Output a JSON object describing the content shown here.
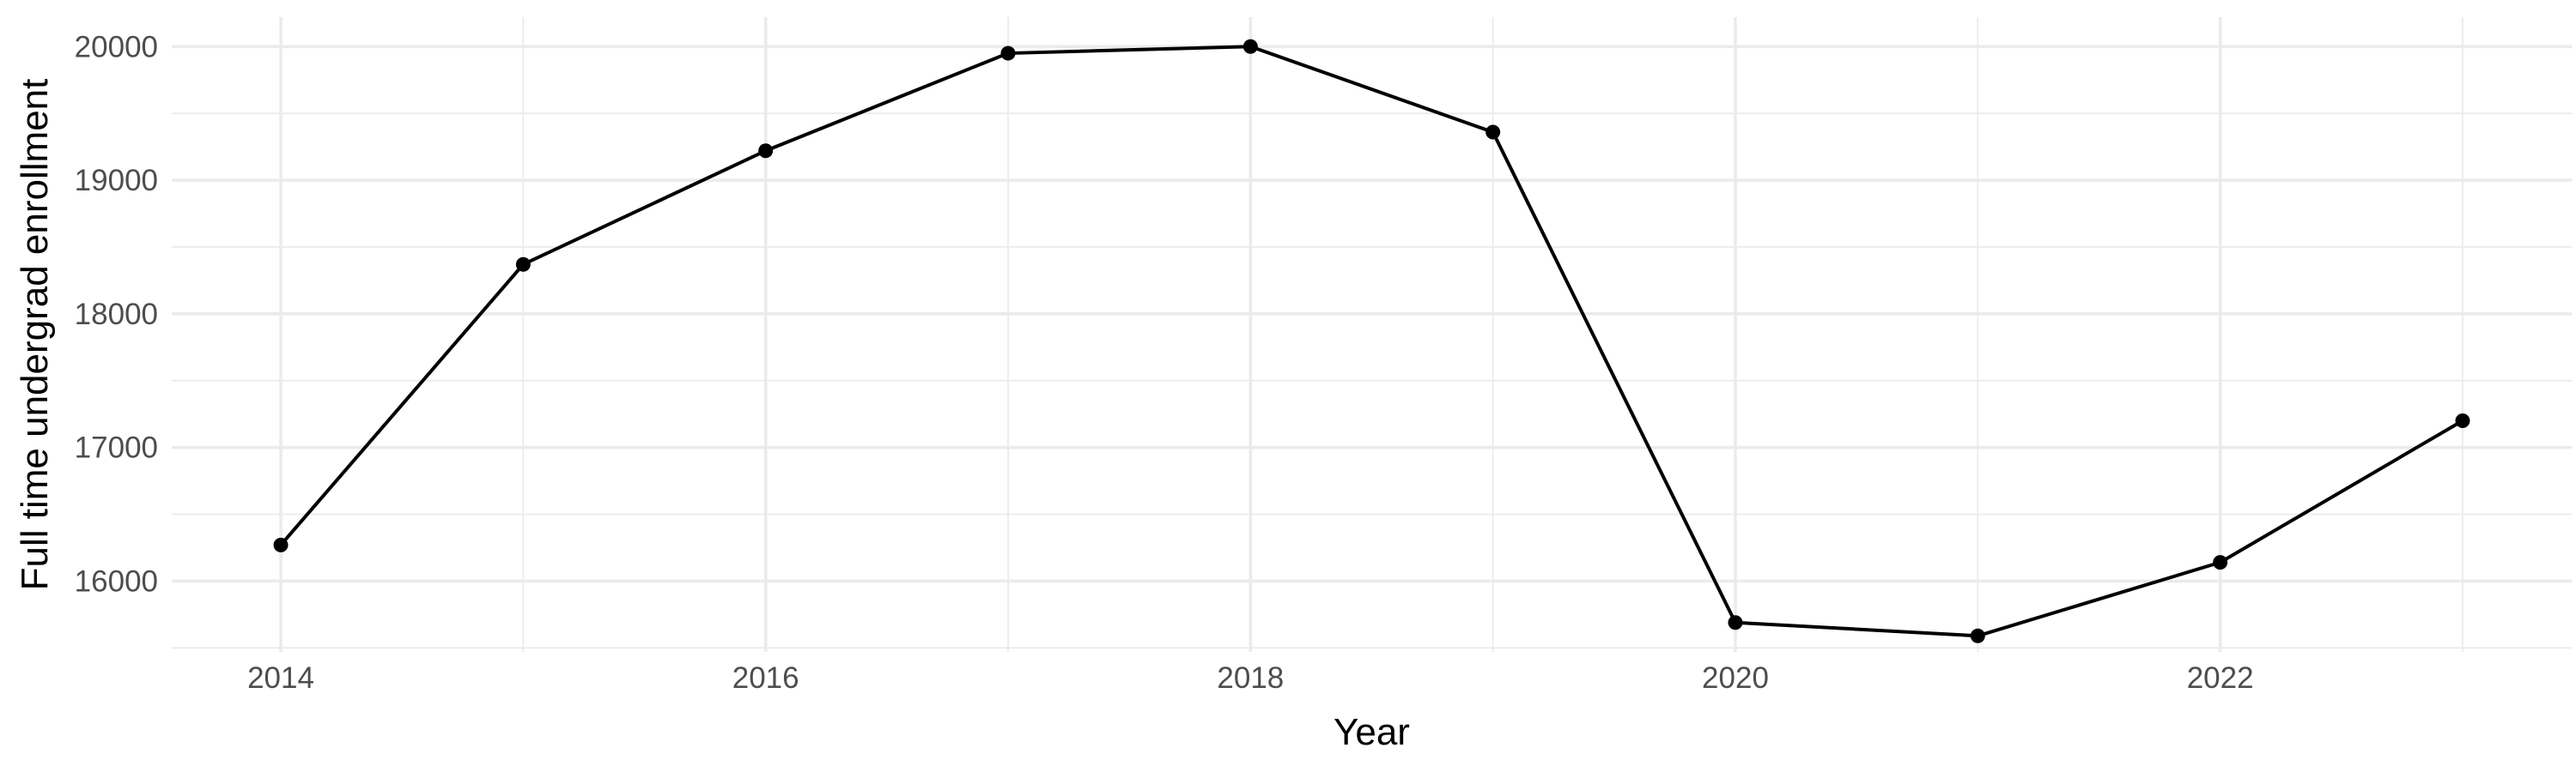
{
  "chart_data": {
    "type": "line",
    "title": "",
    "xlabel": "Year",
    "ylabel": "Full time undergrad enrollment",
    "x": [
      2014,
      2015,
      2016,
      2017,
      2018,
      2019,
      2020,
      2021,
      2022,
      2023
    ],
    "series": [
      {
        "values": [
          16270,
          18370,
          19220,
          19950,
          20000,
          19360,
          15690,
          15590,
          16140,
          17200
        ]
      }
    ],
    "xlim": [
      2013.55,
      2023.45
    ],
    "ylim": [
      15470,
      20220
    ],
    "x_ticks": [
      2014,
      2016,
      2018,
      2020,
      2022
    ],
    "x_tick_labels": [
      "2014",
      "2016",
      "2018",
      "2020",
      "2022"
    ],
    "y_ticks": [
      16000,
      17000,
      18000,
      19000,
      20000
    ],
    "y_tick_labels": [
      "16000",
      "17000",
      "18000",
      "19000",
      "20000"
    ],
    "grid": true,
    "legend": "none",
    "colors": {
      "line": "#000000",
      "point": "#000000",
      "grid": "#ebebeb",
      "tick_text": "#4d4d4d",
      "background": "#ffffff"
    }
  }
}
